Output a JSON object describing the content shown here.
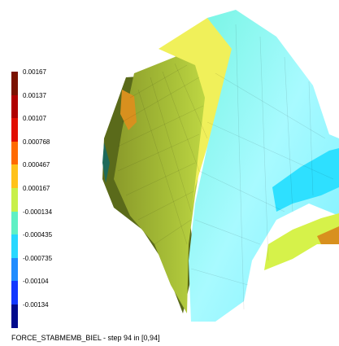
{
  "legend": {
    "labels": [
      "0.00167",
      "0.00137",
      "0.00107",
      "0.000768",
      "0.000467",
      "0.000167",
      "-0.000134",
      "-0.000435",
      "-0.000735",
      "-0.00104",
      "-0.00134"
    ],
    "colors": [
      "#7a1200",
      "#b00000",
      "#e10e00",
      "#ff6a00",
      "#ffc21a",
      "#c8f04a",
      "#5ff0c4",
      "#27d8ff",
      "#1f8cff",
      "#1237ff",
      "#000a8c"
    ]
  },
  "caption": "FORCE_STABMEMB_BIEL - step 94 in [0,94]",
  "model_colors": {
    "cyan": "#74f5e2",
    "light_cyan": "#a8faff",
    "deep_cyan": "#2ee0ff",
    "yellow_green": "#d6f24a",
    "yellow": "#f0f05a",
    "olive": "#8a9a2a",
    "dark_olive": "#5a6a1a",
    "orange": "#d8901e",
    "teal": "#1e6a5a"
  }
}
